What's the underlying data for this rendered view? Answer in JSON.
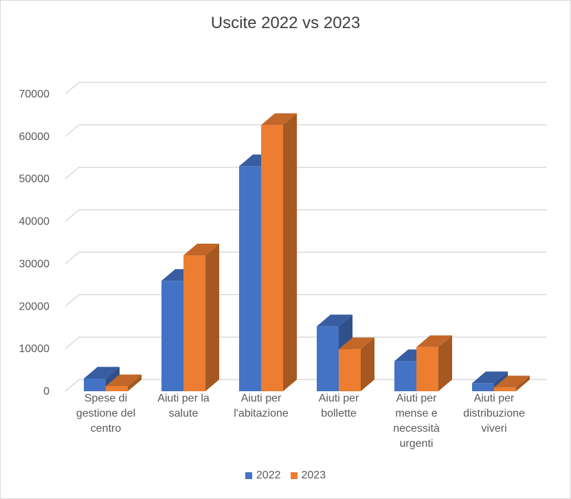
{
  "chart_data": {
    "type": "bar",
    "title": "Uscite 2022 vs 2023",
    "categories": [
      "Spese di gestione del centro",
      "Aiuti per la salute",
      "Aiuti per l'abitazione",
      "Aiuti per bollette",
      "Aiuti per mense e necessità urgenti",
      "Aiuti per distribuzione viveri"
    ],
    "category_lines": [
      [
        "Spese di",
        "gestione del",
        "centro"
      ],
      [
        "Aiuti per la",
        "salute"
      ],
      [
        "Aiuti per",
        "l'abitazione"
      ],
      [
        "Aiuti per",
        "bollette"
      ],
      [
        "Aiuti per",
        "mense e",
        "necessità",
        "urgenti"
      ],
      [
        "Aiuti per",
        "distribuzione",
        "viveri"
      ]
    ],
    "series": [
      {
        "name": "2022",
        "color": "#4472C4",
        "values": [
          3000,
          26000,
          53000,
          15300,
          7100,
          1900
        ]
      },
      {
        "name": "2023",
        "color": "#ED7D31",
        "values": [
          1200,
          32000,
          62700,
          9900,
          10400,
          900
        ]
      }
    ],
    "ylim": [
      0,
      70000
    ],
    "yticks": [
      0,
      10000,
      20000,
      30000,
      40000,
      50000,
      60000,
      70000
    ],
    "grid": true,
    "legend_position": "bottom",
    "xlabel": "",
    "ylabel": ""
  }
}
